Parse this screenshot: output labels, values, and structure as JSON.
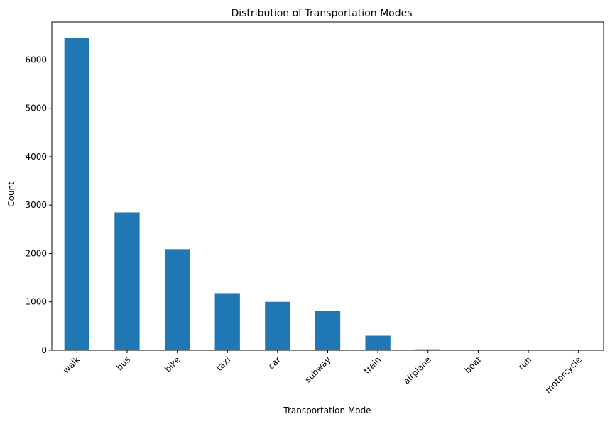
{
  "chart_data": {
    "type": "bar",
    "title": "Distribution of Transportation Modes",
    "xlabel": "Transportation Mode",
    "ylabel": "Count",
    "categories": [
      "walk",
      "bus",
      "bike",
      "taxi",
      "car",
      "subway",
      "train",
      "airplane",
      "boat",
      "run",
      "motorcycle"
    ],
    "values": [
      6460,
      2850,
      2090,
      1180,
      1000,
      810,
      300,
      20,
      4,
      2,
      1
    ],
    "ylim": [
      0,
      6783
    ],
    "yticks": [
      0,
      1000,
      2000,
      3000,
      4000,
      5000,
      6000
    ],
    "bar_color": "#1f77b4",
    "grid": false,
    "legend": "none"
  }
}
